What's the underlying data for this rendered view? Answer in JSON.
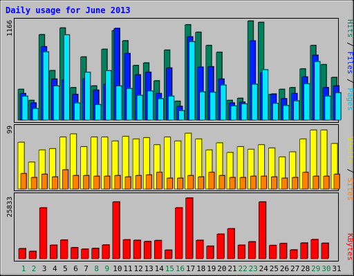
{
  "chart_data": [
    {
      "type": "bar",
      "title": "Daily usage for June 2013",
      "categories": [
        "1",
        "2",
        "3",
        "4",
        "5",
        "6",
        "7",
        "8",
        "9",
        "10",
        "11",
        "12",
        "13",
        "14",
        "15",
        "16",
        "17",
        "18",
        "19",
        "20",
        "21",
        "22",
        "23",
        "24",
        "25",
        "26",
        "27",
        "28",
        "29",
        "30",
        "31"
      ],
      "weekend_days": [
        "1",
        "2",
        "8",
        "9",
        "15",
        "16",
        "22",
        "23",
        "29",
        "30"
      ],
      "y_max_label": "1166",
      "ylim": [
        0,
        1166
      ],
      "series": [
        {
          "name": "Hits",
          "color": "#00805c",
          "values": [
            360,
            230,
            1002,
            580,
            1080,
            380,
            740,
            400,
            830,
            1050,
            930,
            640,
            670,
            460,
            820,
            220,
            1118,
            1030,
            875,
            795,
            230,
            255,
            1162,
            1146,
            300,
            360,
            380,
            600,
            875,
            650,
            500
          ]
        },
        {
          "name": "Files",
          "color": "#0020ff",
          "values": [
            310,
            200,
            860,
            480,
            470,
            300,
            485,
            350,
            420,
            1075,
            780,
            530,
            560,
            310,
            610,
            160,
            975,
            620,
            625,
            480,
            200,
            210,
            928,
            555,
            305,
            250,
            310,
            505,
            760,
            380,
            400
          ]
        },
        {
          "name": "Pages",
          "color": "#00e8ff",
          "values": [
            280,
            135,
            800,
            400,
            1000,
            200,
            560,
            180,
            580,
            400,
            370,
            290,
            340,
            250,
            280,
            110,
            920,
            330,
            325,
            410,
            165,
            190,
            420,
            590,
            195,
            170,
            225,
            425,
            685,
            280,
            320
          ]
        }
      ],
      "legend": "right side, vertical"
    },
    {
      "type": "bar",
      "categories": [
        "1",
        "2",
        "3",
        "4",
        "5",
        "6",
        "7",
        "8",
        "9",
        "10",
        "11",
        "12",
        "13",
        "14",
        "15",
        "16",
        "17",
        "18",
        "19",
        "20",
        "21",
        "22",
        "23",
        "24",
        "25",
        "26",
        "27",
        "28",
        "29",
        "30",
        "31"
      ],
      "y_max_label": "99",
      "ylim": [
        0,
        99
      ],
      "series": [
        {
          "name": "Visits",
          "color": "#ffff00",
          "values": [
            73,
            42,
            61,
            63,
            81,
            86,
            66,
            81,
            81,
            75,
            82,
            78,
            80,
            69,
            81,
            75,
            87,
            78,
            61,
            72,
            57,
            66,
            62,
            69,
            64,
            50,
            58,
            78,
            92,
            92,
            71
          ]
        },
        {
          "name": "Sites",
          "color": "#ff8000",
          "values": [
            24,
            18,
            23,
            19,
            30,
            21,
            21,
            20,
            20,
            21,
            19,
            21,
            22,
            26,
            17,
            17,
            21,
            19,
            26,
            21,
            18,
            18,
            20,
            20,
            19,
            17,
            18,
            26,
            20,
            20,
            23
          ]
        }
      ],
      "legend": "right side, vertical"
    },
    {
      "type": "bar",
      "categories": [
        "1",
        "2",
        "3",
        "4",
        "5",
        "6",
        "7",
        "8",
        "9",
        "10",
        "11",
        "12",
        "13",
        "14",
        "15",
        "16",
        "17",
        "18",
        "19",
        "20",
        "21",
        "22",
        "23",
        "24",
        "25",
        "26",
        "27",
        "28",
        "29",
        "30",
        "31"
      ],
      "y_max_label": "25833",
      "ylim": [
        0,
        25833
      ],
      "series": [
        {
          "name": "KBytes",
          "color": "#ff0000",
          "values": [
            4100,
            3000,
            20700,
            5500,
            7600,
            4500,
            3900,
            4200,
            5600,
            23100,
            7700,
            7500,
            7000,
            7400,
            3500,
            20700,
            24700,
            7500,
            5100,
            10000,
            12200,
            5500,
            6900,
            23100,
            5400,
            6200,
            3600,
            6400,
            7800,
            6300,
            0
          ]
        }
      ],
      "legend": "right side, vertical"
    }
  ]
}
